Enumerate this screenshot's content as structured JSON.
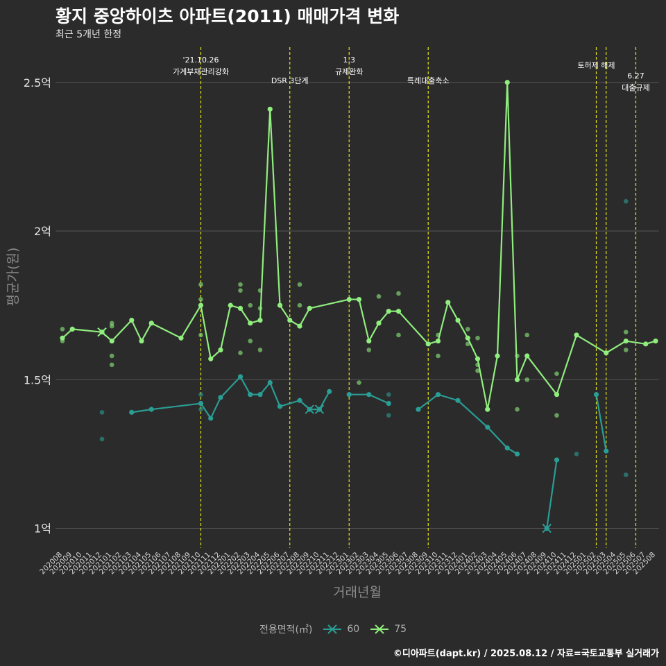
{
  "header": {
    "title": "황지 중앙하이츠 아파트(2011) 매매가격 변화",
    "subtitle": "최근 5개년 한정"
  },
  "caption": "©디아파트(dapt.kr) / 2025.08.12 / 자료=국토교통부 실거래가",
  "colors": {
    "background": "#2b2b2b",
    "series_60": "#2a9d94",
    "series_75": "#90ee7e",
    "event_line": "#e6e61a",
    "grid": "#555555"
  },
  "chart_data": {
    "type": "line",
    "title": "황지 중앙하이츠 아파트(2011) 매매가격 변화",
    "xlabel": "거래년월",
    "ylabel": "평균가(원)",
    "ylim": [
      0.92,
      2.62
    ],
    "yticks": [
      1,
      1.5,
      2,
      2.5
    ],
    "ytick_labels": [
      "1억",
      "1.5억",
      "2억",
      "2.5억"
    ],
    "grid": true,
    "legend_title": "전용면적(㎡)",
    "legend_position": "bottom",
    "categories": [
      "202008",
      "202009",
      "202010",
      "202011",
      "202012",
      "202101",
      "202102",
      "202103",
      "202104",
      "202105",
      "202106",
      "202107",
      "202108",
      "202109",
      "202110",
      "202111",
      "202112",
      "202201",
      "202202",
      "202203",
      "202204",
      "202205",
      "202206",
      "202207",
      "202208",
      "202209",
      "202210",
      "202211",
      "202212",
      "202301",
      "202302",
      "202303",
      "202304",
      "202305",
      "202306",
      "202307",
      "202308",
      "202309",
      "202310",
      "202311",
      "202312",
      "202401",
      "202402",
      "202403",
      "202404",
      "202405",
      "202406",
      "202407",
      "202408",
      "202409",
      "202410",
      "202411",
      "202412",
      "202501",
      "202502",
      "202503",
      "202504",
      "202505",
      "202506",
      "202507",
      "202508"
    ],
    "series": [
      {
        "name": "60",
        "color": "#2a9d94",
        "line": [
          [
            4,
            null
          ],
          [
            7,
            1.39
          ],
          [
            9,
            1.4
          ],
          [
            14,
            1.42
          ],
          [
            15,
            1.37
          ],
          [
            16,
            1.44
          ],
          [
            18,
            1.51
          ],
          [
            19,
            1.45
          ],
          [
            20,
            1.45
          ],
          [
            21,
            1.49
          ],
          [
            22,
            1.41
          ],
          [
            24,
            1.43
          ],
          [
            25,
            1.4
          ],
          [
            26,
            1.4
          ],
          [
            27,
            1.46
          ],
          [
            null,
            null
          ],
          [
            29,
            1.45
          ],
          [
            31,
            1.45
          ],
          [
            33,
            1.42
          ],
          [
            null,
            null
          ],
          [
            36,
            1.4
          ],
          [
            38,
            1.45
          ],
          [
            40,
            1.43
          ],
          [
            43,
            1.34
          ],
          [
            45,
            1.27
          ],
          [
            46,
            1.25
          ],
          [
            null,
            null
          ],
          [
            49,
            1.0
          ],
          [
            50,
            1.23
          ],
          [
            null,
            null
          ],
          [
            54,
            1.45
          ],
          [
            55,
            1.26
          ]
        ],
        "points": [
          [
            4,
            1.39
          ],
          [
            4,
            1.3
          ],
          [
            14,
            1.45
          ],
          [
            14,
            1.4
          ],
          [
            33,
            1.38
          ],
          [
            33,
            1.45
          ],
          [
            52,
            1.25
          ],
          [
            57,
            2.1
          ],
          [
            57,
            1.18
          ]
        ],
        "crosses": [
          [
            4,
            1.66
          ],
          [
            25,
            1.4
          ],
          [
            26,
            1.4
          ],
          [
            49,
            1.0
          ]
        ]
      },
      {
        "name": "75",
        "color": "#90ee7e",
        "line": [
          [
            0,
            1.64
          ],
          [
            1,
            1.67
          ],
          [
            4,
            1.66
          ],
          [
            5,
            1.63
          ],
          [
            7,
            1.7
          ],
          [
            8,
            1.63
          ],
          [
            9,
            1.69
          ],
          [
            12,
            1.64
          ],
          [
            14,
            1.75
          ],
          [
            15,
            1.57
          ],
          [
            16,
            1.6
          ],
          [
            17,
            1.75
          ],
          [
            18,
            1.74
          ],
          [
            19,
            1.69
          ],
          [
            20,
            1.7
          ],
          [
            21,
            2.41
          ],
          [
            22,
            1.75
          ],
          [
            23,
            1.7
          ],
          [
            24,
            1.68
          ],
          [
            25,
            1.74
          ],
          [
            29,
            1.77
          ],
          [
            30,
            1.77
          ],
          [
            31,
            1.63
          ],
          [
            32,
            1.69
          ],
          [
            33,
            1.73
          ],
          [
            34,
            1.73
          ],
          [
            37,
            1.62
          ],
          [
            38,
            1.63
          ],
          [
            39,
            1.76
          ],
          [
            40,
            1.7
          ],
          [
            41,
            1.64
          ],
          [
            42,
            1.57
          ],
          [
            43,
            1.4
          ],
          [
            44,
            1.58
          ],
          [
            45,
            2.5
          ],
          [
            46,
            1.5
          ],
          [
            47,
            1.58
          ],
          [
            50,
            1.45
          ],
          [
            52,
            1.65
          ],
          [
            55,
            1.59
          ],
          [
            57,
            1.63
          ],
          [
            59,
            1.62
          ],
          [
            60,
            1.63
          ]
        ],
        "points": [
          [
            0,
            1.67
          ],
          [
            0,
            1.63
          ],
          [
            5,
            1.69
          ],
          [
            5,
            1.68
          ],
          [
            5,
            1.58
          ],
          [
            5,
            1.55
          ],
          [
            14,
            1.82
          ],
          [
            14,
            1.77
          ],
          [
            14,
            1.65
          ],
          [
            16,
            1.6
          ],
          [
            18,
            1.82
          ],
          [
            18,
            1.8
          ],
          [
            18,
            1.59
          ],
          [
            19,
            1.75
          ],
          [
            19,
            1.63
          ],
          [
            20,
            1.8
          ],
          [
            20,
            1.74
          ],
          [
            20,
            1.6
          ],
          [
            24,
            1.82
          ],
          [
            24,
            1.75
          ],
          [
            29,
            1.77
          ],
          [
            30,
            1.77
          ],
          [
            30,
            1.49
          ],
          [
            31,
            1.6
          ],
          [
            32,
            1.78
          ],
          [
            34,
            1.79
          ],
          [
            34,
            1.65
          ],
          [
            38,
            1.65
          ],
          [
            38,
            1.58
          ],
          [
            41,
            1.67
          ],
          [
            41,
            1.62
          ],
          [
            42,
            1.64
          ],
          [
            42,
            1.55
          ],
          [
            42,
            1.53
          ],
          [
            46,
            1.58
          ],
          [
            46,
            1.4
          ],
          [
            47,
            1.65
          ],
          [
            47,
            1.5
          ],
          [
            50,
            1.52
          ],
          [
            50,
            1.38
          ],
          [
            57,
            1.66
          ],
          [
            57,
            1.6
          ]
        ],
        "crosses": [
          [
            4,
            1.66
          ]
        ]
      }
    ],
    "events": [
      {
        "x": 14,
        "lines": [
          "'21.10.26",
          "가계부채관리강화"
        ],
        "level": 0
      },
      {
        "x": 23,
        "lines": [
          "DSR 3단계"
        ],
        "level": 2
      },
      {
        "x": 29,
        "lines": [
          "1.3",
          "규제완화"
        ],
        "level": 0
      },
      {
        "x": 37,
        "lines": [
          "특례대출축소"
        ],
        "level": 2
      },
      {
        "x": 54,
        "lines": [
          "토허제 해제"
        ],
        "level": 1
      },
      {
        "x": 55,
        "lines": [],
        "level": 1
      },
      {
        "x": 58,
        "lines": [
          "6.27",
          "대출규제"
        ],
        "level": 3
      }
    ]
  }
}
